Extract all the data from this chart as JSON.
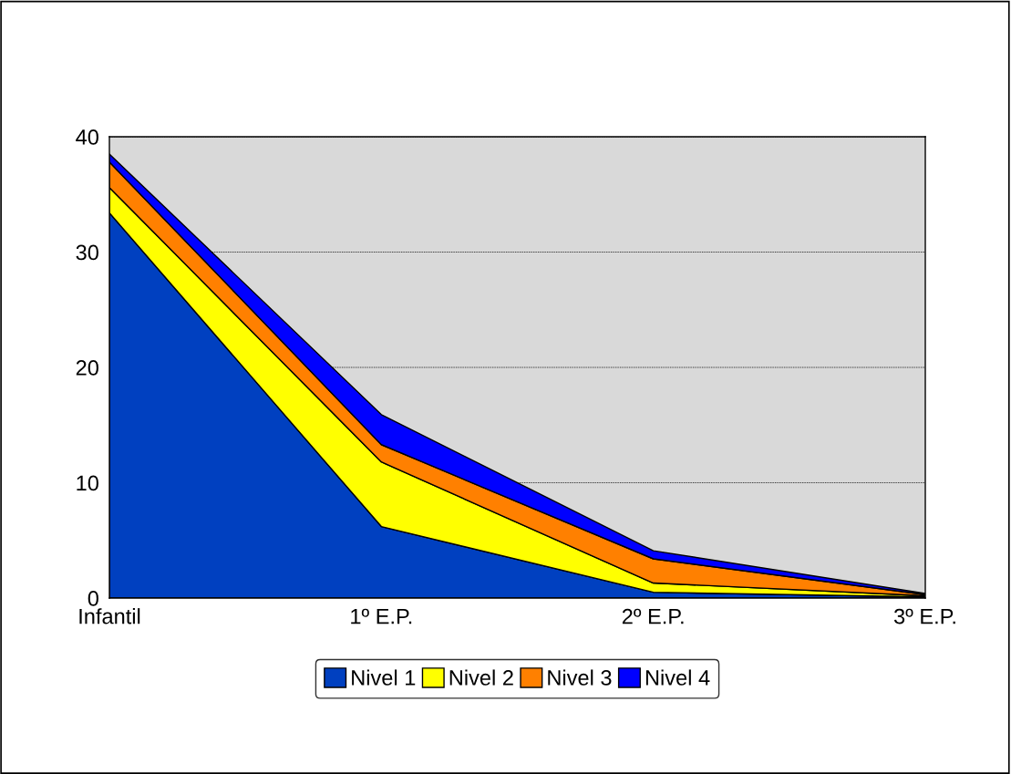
{
  "chart_data": {
    "type": "area",
    "stacked": true,
    "categories": [
      "Infantil",
      "1º E.P.",
      "2º E.P.",
      "3º E.P."
    ],
    "series": [
      {
        "name": "Nivel 1",
        "color": "#0040c0",
        "values": [
          33.4,
          6.2,
          0.5,
          0.1
        ]
      },
      {
        "name": "Nivel 2",
        "color": "#ffff00",
        "values": [
          2.2,
          5.6,
          0.8,
          0.1
        ]
      },
      {
        "name": "Nivel 3",
        "color": "#ff8000",
        "values": [
          2.2,
          1.5,
          2.1,
          0.1
        ]
      },
      {
        "name": "Nivel 4",
        "color": "#0000ff",
        "values": [
          0.7,
          2.6,
          0.7,
          0.1
        ]
      }
    ],
    "ylim": [
      0,
      40
    ],
    "yticks": [
      0,
      10,
      20,
      30,
      40
    ],
    "grid": "y",
    "legend": "bottom"
  }
}
